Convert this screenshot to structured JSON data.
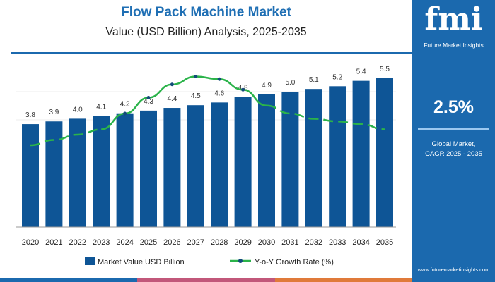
{
  "chart_data": {
    "type": "bar",
    "title": "Flow Pack Machine Market",
    "subtitle": "Value (USD Billion) Analysis, 2025-2035",
    "categories": [
      "2020",
      "2021",
      "2022",
      "2023",
      "2024",
      "2025",
      "2026",
      "2027",
      "2028",
      "2029",
      "2030",
      "2031",
      "2032",
      "2033",
      "2034",
      "2035"
    ],
    "series": [
      {
        "name": "Market Value USD Billion",
        "type": "bar",
        "color": "#0e5596",
        "values": [
          3.8,
          3.9,
          4.0,
          4.1,
          4.2,
          4.3,
          4.4,
          4.5,
          4.6,
          4.8,
          4.9,
          5.0,
          5.1,
          5.2,
          5.4,
          5.5
        ],
        "labels": [
          "3.8",
          "3.9",
          "4.0",
          "4.1",
          "4.2",
          "4.3",
          "4.4",
          "4.5",
          "4.6",
          "4.8",
          "4.9",
          "5.0",
          "5.1",
          "5.2",
          "5.4",
          "5.5"
        ]
      },
      {
        "name": "Y-o-Y Growth Rate (%)",
        "type": "line",
        "color": "#2bb34a",
        "values": [
          1.9,
          2.0,
          2.1,
          2.2,
          2.5,
          2.8,
          3.05,
          3.2,
          3.15,
          2.95,
          2.65,
          2.5,
          2.4,
          2.35,
          2.3,
          2.2
        ]
      }
    ],
    "ylim": [
      0,
      6
    ]
  },
  "side": {
    "logo": "fmi",
    "brand": "Future Market Insights",
    "cagr": "2.5%",
    "cagr_label1": "Global Market,",
    "cagr_label2": "CAGR 2025 - 2035",
    "url": "www.futuremarketinsights.com"
  }
}
